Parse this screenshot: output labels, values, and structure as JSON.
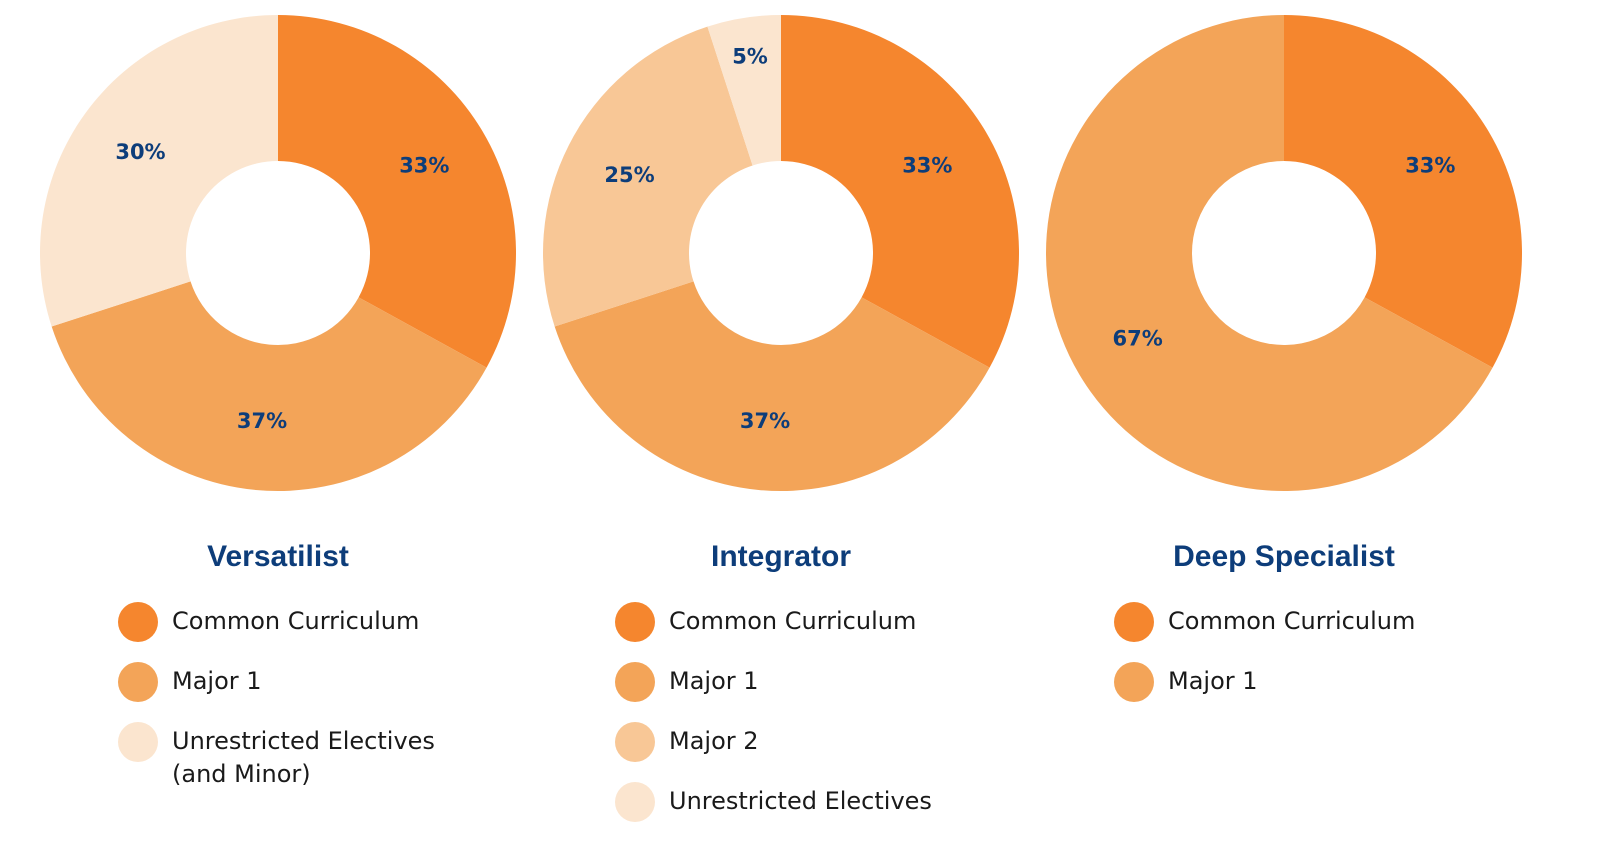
{
  "chart_data": [
    {
      "type": "pie",
      "title": "Versatilist",
      "slices": [
        {
          "label": "Common Curriculum",
          "value": 33,
          "display": "33%",
          "color": "#f5862e"
        },
        {
          "label": "Major 1",
          "value": 37,
          "display": "37%",
          "color": "#f3a458"
        },
        {
          "label": "Unrestricted Electives (and Minor)",
          "value": 30,
          "display": "30%",
          "color": "#fbe5cf"
        }
      ]
    },
    {
      "type": "pie",
      "title": "Integrator",
      "slices": [
        {
          "label": "Common Curriculum",
          "value": 33,
          "display": "33%",
          "color": "#f5862e"
        },
        {
          "label": "Major 1",
          "value": 37,
          "display": "37%",
          "color": "#f3a458"
        },
        {
          "label": "Major 2",
          "value": 25,
          "display": "25%",
          "color": "#f8c796"
        },
        {
          "label": "Unrestricted Electives",
          "value": 5,
          "display": "5%",
          "color": "#fbe5cf"
        }
      ]
    },
    {
      "type": "pie",
      "title": "Deep Specialist",
      "slices": [
        {
          "label": "Common Curriculum",
          "value": 33,
          "display": "33%",
          "color": "#f5862e"
        },
        {
          "label": "Major 1",
          "value": 67,
          "display": "67%",
          "color": "#f3a458"
        }
      ]
    }
  ]
}
